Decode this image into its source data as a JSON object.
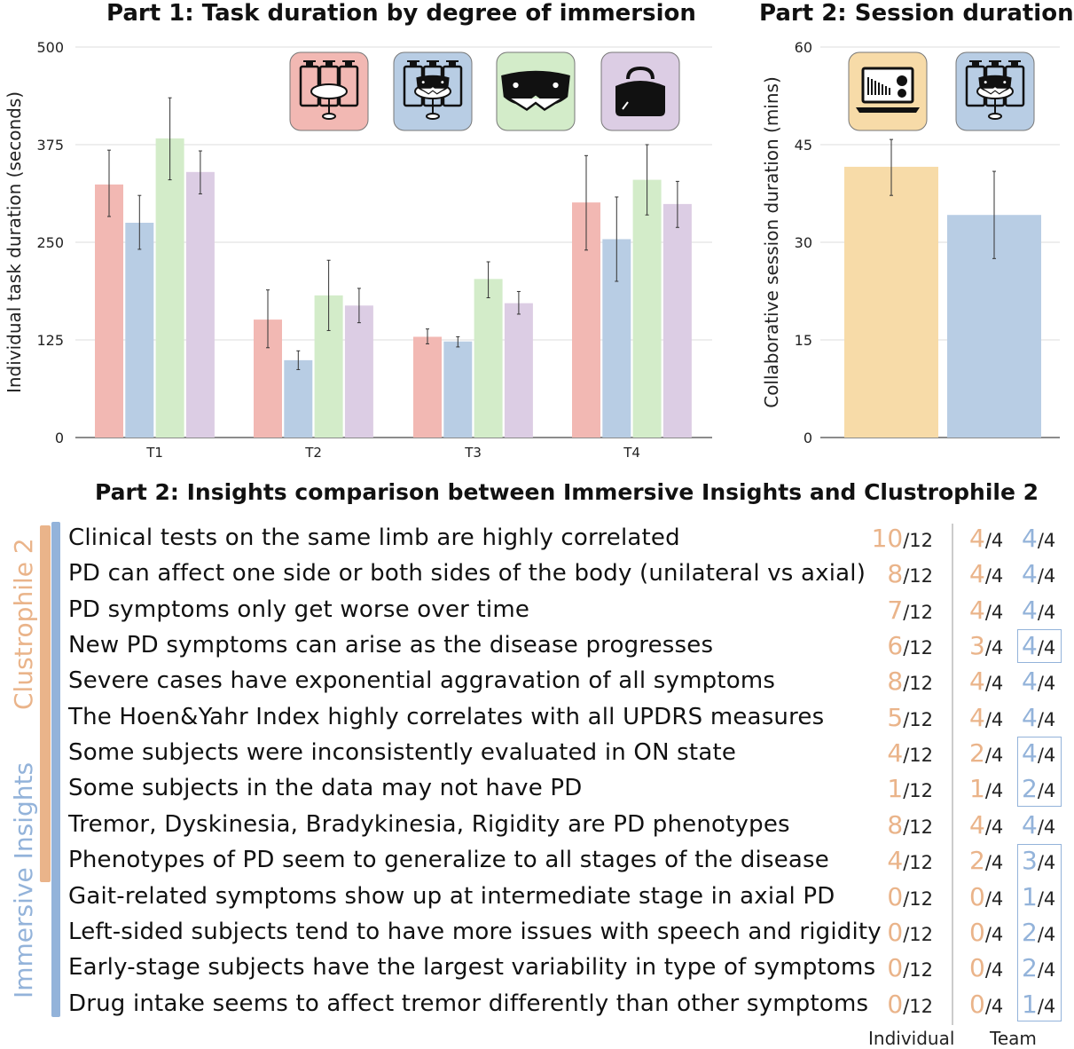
{
  "chart_data": [
    {
      "type": "bar",
      "title": "Part 1: Task duration by degree of immersion",
      "ylabel": "Individual task duration (seconds)",
      "xlabel": "",
      "ylim": [
        0,
        500
      ],
      "yticks": [
        0,
        125,
        250,
        375,
        500
      ],
      "grid": true,
      "categories": [
        "T1",
        "T2",
        "T3",
        "T4"
      ],
      "colors": [
        "#f2b8b3",
        "#b8cde4",
        "#d3ecc9",
        "#dccde4"
      ],
      "legend_icons": [
        "desktop-displays-table-icon",
        "displays-with-ar-headset-icon",
        "ar-headset-icon",
        "vr-headset-icon"
      ],
      "series": [
        {
          "values": [
            324,
            151,
            129,
            301
          ],
          "err_low": [
            283,
            115,
            120,
            240
          ],
          "err_high": [
            368,
            189,
            139,
            361
          ]
        },
        {
          "values": [
            275,
            99,
            123,
            254
          ],
          "err_low": [
            241,
            87,
            116,
            200
          ],
          "err_high": [
            310,
            111,
            129,
            308
          ]
        },
        {
          "values": [
            383,
            182,
            203,
            330
          ],
          "err_low": [
            330,
            137,
            179,
            285
          ],
          "err_high": [
            435,
            227,
            225,
            375
          ]
        },
        {
          "values": [
            340,
            169,
            172,
            299
          ],
          "err_low": [
            312,
            147,
            158,
            269
          ],
          "err_high": [
            367,
            191,
            187,
            328
          ]
        }
      ]
    },
    {
      "type": "bar",
      "title": "Part 2: Session duration",
      "ylabel": "Collaborative session duration (mins)",
      "ylim": [
        0,
        60
      ],
      "yticks": [
        0,
        15,
        30,
        45,
        60
      ],
      "grid": true,
      "categories": [
        "",
        ""
      ],
      "colors": [
        "#f7dba8",
        "#b8cde4"
      ],
      "legend_icons": [
        "laptop-dashboard-icon",
        "displays-with-ar-headset-icon"
      ],
      "values": [
        41.6,
        34.2
      ],
      "err_low": [
        37.2,
        27.5
      ],
      "err_high": [
        45.8,
        40.9
      ]
    }
  ],
  "insights": {
    "title": "Part 2: Insights comparison between Immersive Insights and Clustrophile 2",
    "group_labels": {
      "clustrophile": "Clustrophile 2",
      "immersive": "Immersive Insights"
    },
    "column_headers": {
      "individual": "Individual",
      "team": "Team"
    },
    "colors": {
      "clustrophile": "#eab48a",
      "immersive": "#93b3da"
    },
    "rows": [
      {
        "text": "Clinical tests on the same limb are highly correlated",
        "individual": "10",
        "individual_total": "/12",
        "team_c": "4",
        "team_c_total": "/4",
        "team_i": "4",
        "team_i_total": "/4",
        "boxed": false
      },
      {
        "text": "PD can affect one side or both sides of the body (unilateral vs axial)",
        "individual": "8",
        "individual_total": "/12",
        "team_c": "4",
        "team_c_total": "/4",
        "team_i": "4",
        "team_i_total": "/4",
        "boxed": false
      },
      {
        "text": "PD symptoms only get worse over time",
        "individual": "7",
        "individual_total": "/12",
        "team_c": "4",
        "team_c_total": "/4",
        "team_i": "4",
        "team_i_total": "/4",
        "boxed": false
      },
      {
        "text": "New PD symptoms can arise as the disease progresses",
        "individual": "6",
        "individual_total": "/12",
        "team_c": "3",
        "team_c_total": "/4",
        "team_i": "4",
        "team_i_total": "/4",
        "boxed": true
      },
      {
        "text": "Severe cases have exponential aggravation of all symptoms",
        "individual": "8",
        "individual_total": "/12",
        "team_c": "4",
        "team_c_total": "/4",
        "team_i": "4",
        "team_i_total": "/4",
        "boxed": false
      },
      {
        "text": "The Hoen&Yahr Index highly correlates with all UPDRS measures",
        "individual": "5",
        "individual_total": "/12",
        "team_c": "4",
        "team_c_total": "/4",
        "team_i": "4",
        "team_i_total": "/4",
        "boxed": false
      },
      {
        "text": "Some subjects were inconsistently evaluated in ON state",
        "individual": "4",
        "individual_total": "/12",
        "team_c": "2",
        "team_c_total": "/4",
        "team_i": "4",
        "team_i_total": "/4",
        "boxed": true
      },
      {
        "text": "Some subjects in the data may not have PD",
        "individual": "1",
        "individual_total": "/12",
        "team_c": "1",
        "team_c_total": "/4",
        "team_i": "2",
        "team_i_total": "/4",
        "boxed": true
      },
      {
        "text": "Tremor, Dyskinesia, Bradykinesia, Rigidity are PD phenotypes",
        "individual": "8",
        "individual_total": "/12",
        "team_c": "4",
        "team_c_total": "/4",
        "team_i": "4",
        "team_i_total": "/4",
        "boxed": false
      },
      {
        "text": "Phenotypes of PD seem to generalize to all stages of the disease",
        "individual": "4",
        "individual_total": "/12",
        "team_c": "2",
        "team_c_total": "/4",
        "team_i": "3",
        "team_i_total": "/4",
        "boxed": true
      },
      {
        "text": "Gait-related symptoms show up at intermediate stage in axial PD",
        "individual": "0",
        "individual_total": "/12",
        "team_c": "0",
        "team_c_total": "/4",
        "team_i": "1",
        "team_i_total": "/4",
        "boxed": true
      },
      {
        "text": "Left-sided subjects tend to have more issues with speech and rigidity",
        "individual": "0",
        "individual_total": "/12",
        "team_c": "0",
        "team_c_total": "/4",
        "team_i": "2",
        "team_i_total": "/4",
        "boxed": true
      },
      {
        "text": "Early-stage subjects have the largest variability in type of symptoms",
        "individual": "0",
        "individual_total": "/12",
        "team_c": "0",
        "team_c_total": "/4",
        "team_i": "2",
        "team_i_total": "/4",
        "boxed": true
      },
      {
        "text": "Drug intake seems to affect tremor differently than other symptoms",
        "individual": "0",
        "individual_total": "/12",
        "team_c": "0",
        "team_c_total": "/4",
        "team_i": "1",
        "team_i_total": "/4",
        "boxed": true
      }
    ]
  }
}
